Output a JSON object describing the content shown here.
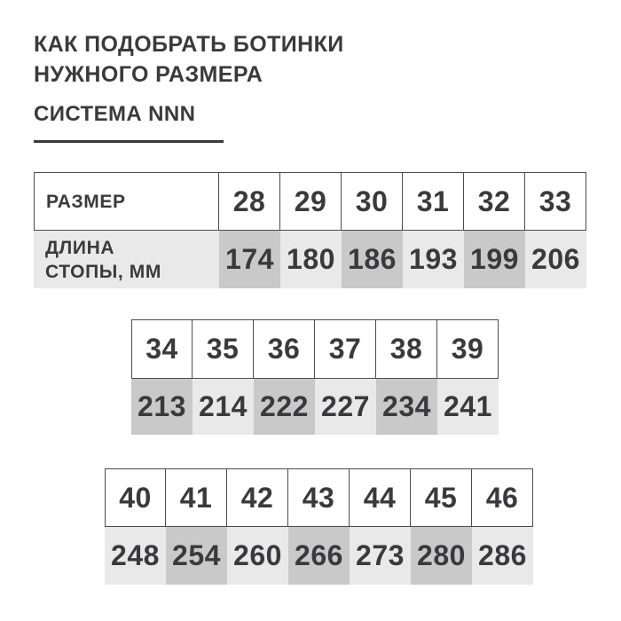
{
  "page": {
    "title": "КАК ПОДОБРАТЬ БОТИНКИ НУЖНОГО РАЗМЕРА",
    "subtitle": "СИСТЕМА NNN"
  },
  "colors": {
    "background": "#ffffff",
    "text": "#3a3a3c",
    "border": "#4c4c4e",
    "underline": "#3a3a3c",
    "cell_dark": "#c9c9c9",
    "cell_light": "#e9e9e9"
  },
  "table1": {
    "size_label": "РАЗМЕР",
    "length_label": "ДЛИНА СТОПЫ, ММ",
    "sizes": [
      "28",
      "29",
      "30",
      "31",
      "32",
      "33"
    ],
    "lengths": [
      "174",
      "180",
      "186",
      "193",
      "199",
      "206"
    ]
  },
  "table2": {
    "sizes": [
      "34",
      "35",
      "36",
      "37",
      "38",
      "39"
    ],
    "lengths": [
      "213",
      "214",
      "222",
      "227",
      "234",
      "241"
    ]
  },
  "table3": {
    "sizes": [
      "40",
      "41",
      "42",
      "43",
      "44",
      "45",
      "46"
    ],
    "lengths": [
      "248",
      "254",
      "260",
      "266",
      "273",
      "280",
      "286"
    ]
  },
  "chart_data": {
    "type": "table",
    "title": "КАК ПОДОБРАТЬ БОТИНКИ НУЖНОГО РАЗМЕРА",
    "subtitle": "СИСТЕМА NNN",
    "columns": [
      "РАЗМЕР",
      "ДЛИНА СТОПЫ, ММ"
    ],
    "rows": [
      [
        28,
        174
      ],
      [
        29,
        180
      ],
      [
        30,
        186
      ],
      [
        31,
        193
      ],
      [
        32,
        199
      ],
      [
        33,
        206
      ],
      [
        34,
        213
      ],
      [
        35,
        214
      ],
      [
        36,
        222
      ],
      [
        37,
        227
      ],
      [
        38,
        234
      ],
      [
        39,
        241
      ],
      [
        40,
        248
      ],
      [
        41,
        254
      ],
      [
        42,
        260
      ],
      [
        43,
        266
      ],
      [
        44,
        273
      ],
      [
        45,
        280
      ],
      [
        46,
        286
      ]
    ]
  }
}
